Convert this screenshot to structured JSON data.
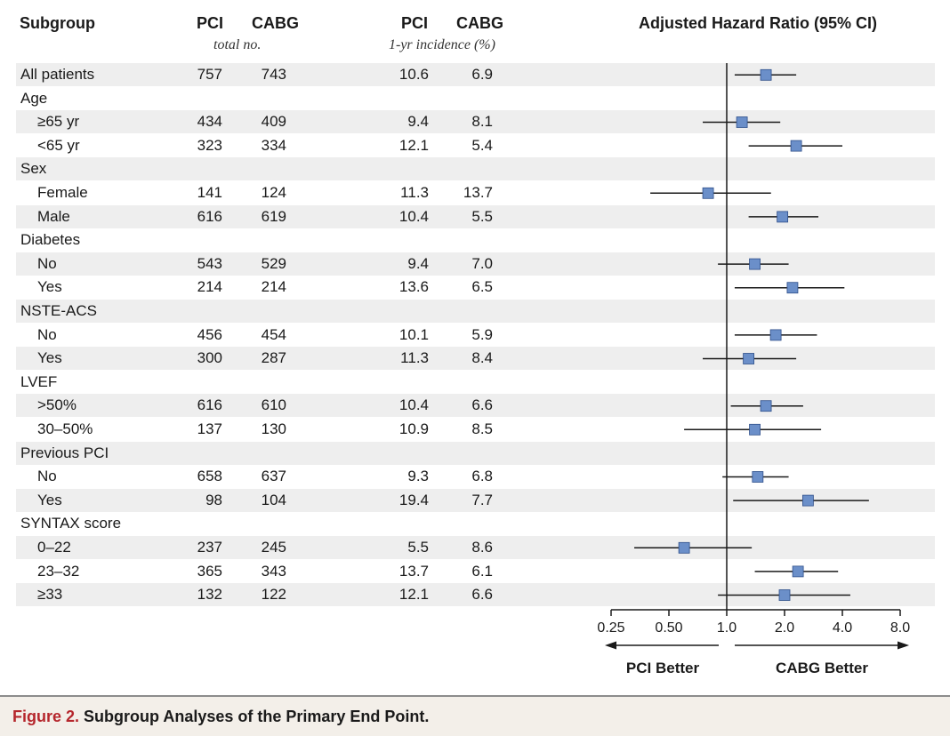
{
  "headers": {
    "subgroup": "Subgroup",
    "pci_n": "PCI",
    "cabg_n": "CABG",
    "total": "total no.",
    "pci_i": "PCI",
    "cabg_i": "CABG",
    "incidence": "1-yr incidence (%)",
    "hr": "Adjusted Hazard Ratio (95% CI)"
  },
  "rows": [
    {
      "label": "All patients",
      "indent": false,
      "shade": true,
      "pci_n": "757",
      "cabg_n": "743",
      "pci_i": "10.6",
      "cabg_i": "6.9"
    },
    {
      "label": "Age",
      "indent": false,
      "shade": false
    },
    {
      "label": "≥65 yr",
      "indent": true,
      "shade": true,
      "pci_n": "434",
      "cabg_n": "409",
      "pci_i": "9.4",
      "cabg_i": "8.1"
    },
    {
      "label": "<65 yr",
      "indent": true,
      "shade": false,
      "pci_n": "323",
      "cabg_n": "334",
      "pci_i": "12.1",
      "cabg_i": "5.4"
    },
    {
      "label": "Sex",
      "indent": false,
      "shade": true
    },
    {
      "label": "Female",
      "indent": true,
      "shade": false,
      "pci_n": "141",
      "cabg_n": "124",
      "pci_i": "11.3",
      "cabg_i": "13.7"
    },
    {
      "label": "Male",
      "indent": true,
      "shade": true,
      "pci_n": "616",
      "cabg_n": "619",
      "pci_i": "10.4",
      "cabg_i": "5.5"
    },
    {
      "label": "Diabetes",
      "indent": false,
      "shade": false
    },
    {
      "label": "No",
      "indent": true,
      "shade": true,
      "pci_n": "543",
      "cabg_n": "529",
      "pci_i": "9.4",
      "cabg_i": "7.0"
    },
    {
      "label": "Yes",
      "indent": true,
      "shade": false,
      "pci_n": "214",
      "cabg_n": "214",
      "pci_i": "13.6",
      "cabg_i": "6.5"
    },
    {
      "label": "NSTE-ACS",
      "indent": false,
      "shade": true
    },
    {
      "label": "No",
      "indent": true,
      "shade": false,
      "pci_n": "456",
      "cabg_n": "454",
      "pci_i": "10.1",
      "cabg_i": "5.9"
    },
    {
      "label": "Yes",
      "indent": true,
      "shade": true,
      "pci_n": "300",
      "cabg_n": "287",
      "pci_i": "11.3",
      "cabg_i": "8.4"
    },
    {
      "label": "LVEF",
      "indent": false,
      "shade": false
    },
    {
      "label": ">50%",
      "indent": true,
      "shade": true,
      "pci_n": "616",
      "cabg_n": "610",
      "pci_i": "10.4",
      "cabg_i": "6.6"
    },
    {
      "label": "30–50%",
      "indent": true,
      "shade": false,
      "pci_n": "137",
      "cabg_n": "130",
      "pci_i": "10.9",
      "cabg_i": "8.5"
    },
    {
      "label": "Previous PCI",
      "indent": false,
      "shade": true
    },
    {
      "label": "No",
      "indent": true,
      "shade": false,
      "pci_n": "658",
      "cabg_n": "637",
      "pci_i": "9.3",
      "cabg_i": "6.8"
    },
    {
      "label": "Yes",
      "indent": true,
      "shade": true,
      "pci_n": "98",
      "cabg_n": "104",
      "pci_i": "19.4",
      "cabg_i": "7.7"
    },
    {
      "label": "SYNTAX score",
      "indent": false,
      "shade": false
    },
    {
      "label": "0–22",
      "indent": true,
      "shade": true,
      "pci_n": "237",
      "cabg_n": "245",
      "pci_i": "5.5",
      "cabg_i": "8.6"
    },
    {
      "label": "23–32",
      "indent": true,
      "shade": false,
      "pci_n": "365",
      "cabg_n": "343",
      "pci_i": "13.7",
      "cabg_i": "6.1"
    },
    {
      "label": "≥33",
      "indent": true,
      "shade": true,
      "pci_n": "132",
      "cabg_n": "122",
      "pci_i": "12.1",
      "cabg_i": "6.6"
    }
  ],
  "chart_data": {
    "type": "forest",
    "title": "Adjusted Hazard Ratio (95% CI)",
    "scale": "log2",
    "xlim": [
      0.25,
      8.0
    ],
    "reference": 1.0,
    "ticks": [
      "0.25",
      "0.50",
      "1.0",
      "2.0",
      "4.0",
      "8.0"
    ],
    "left_label": "PCI Better",
    "right_label": "CABG Better",
    "marker_color": "#6b8fc9",
    "marker_border": "#2f4f8a",
    "points": [
      {
        "row": 0,
        "hr": 1.6,
        "lo": 1.1,
        "hi": 2.3
      },
      {
        "row": 2,
        "hr": 1.2,
        "lo": 0.75,
        "hi": 1.9
      },
      {
        "row": 3,
        "hr": 2.3,
        "lo": 1.3,
        "hi": 4.0
      },
      {
        "row": 5,
        "hr": 0.8,
        "lo": 0.4,
        "hi": 1.7
      },
      {
        "row": 6,
        "hr": 1.95,
        "lo": 1.3,
        "hi": 3.0
      },
      {
        "row": 8,
        "hr": 1.4,
        "lo": 0.9,
        "hi": 2.1
      },
      {
        "row": 9,
        "hr": 2.2,
        "lo": 1.1,
        "hi": 4.1
      },
      {
        "row": 11,
        "hr": 1.8,
        "lo": 1.1,
        "hi": 2.95
      },
      {
        "row": 12,
        "hr": 1.3,
        "lo": 0.75,
        "hi": 2.3
      },
      {
        "row": 14,
        "hr": 1.6,
        "lo": 1.05,
        "hi": 2.5
      },
      {
        "row": 15,
        "hr": 1.4,
        "lo": 0.6,
        "hi": 3.1
      },
      {
        "row": 17,
        "hr": 1.45,
        "lo": 0.95,
        "hi": 2.1
      },
      {
        "row": 18,
        "hr": 2.65,
        "lo": 1.08,
        "hi": 5.5
      },
      {
        "row": 20,
        "hr": 0.6,
        "lo": 0.33,
        "hi": 1.35
      },
      {
        "row": 21,
        "hr": 2.35,
        "lo": 1.4,
        "hi": 3.8
      },
      {
        "row": 22,
        "hr": 2.0,
        "lo": 0.9,
        "hi": 4.4
      }
    ]
  },
  "caption": {
    "figure": "Figure 2.",
    "text": " Subgroup Analyses of the Primary End Point."
  }
}
